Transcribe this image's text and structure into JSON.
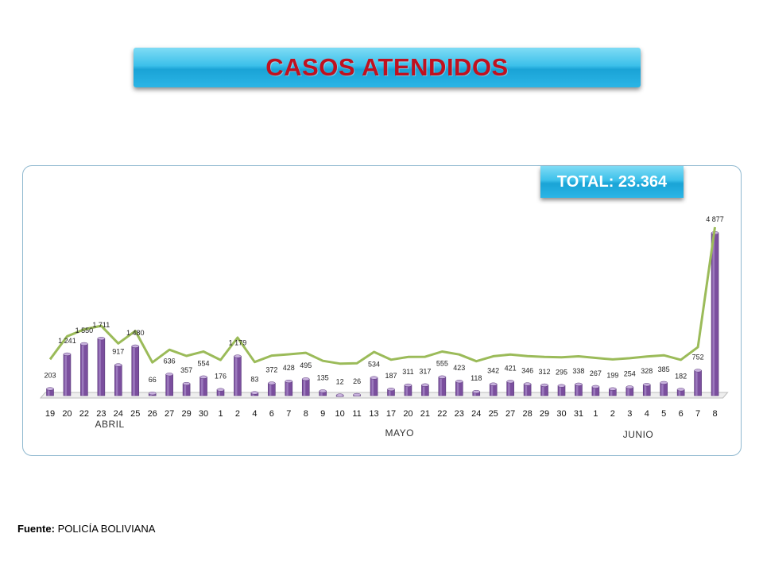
{
  "title": "CASOS ATENDIDOS",
  "total_label": "TOTAL: 23.364",
  "source": {
    "label": "Fuente:",
    "text": "POLICÍA BOLIVIANA"
  },
  "colors": {
    "bar": "#7b4f9e",
    "bar_light": "#a585c4",
    "line": "#9bbb59",
    "title": "#c0111f",
    "banner": "#2bb5e6"
  },
  "chart_data": {
    "type": "bar",
    "categories": [
      "19",
      "20",
      "22",
      "23",
      "24",
      "25",
      "26",
      "27",
      "29",
      "30",
      "1",
      "2",
      "4",
      "6",
      "7",
      "8",
      "9",
      "10",
      "11",
      "13",
      "17",
      "20",
      "21",
      "22",
      "23",
      "24",
      "25",
      "27",
      "28",
      "29",
      "30",
      "31",
      "1",
      "2",
      "3",
      "4",
      "5",
      "6",
      "7",
      "8"
    ],
    "value_labels": [
      "203",
      "1 241",
      "1 550",
      "1 711",
      "917",
      "1 480",
      "66",
      "636",
      "357",
      "554",
      "176",
      "1 179",
      "83",
      "372",
      "428",
      "495",
      "135",
      "12",
      "26",
      "534",
      "187",
      "311",
      "317",
      "555",
      "423",
      "118",
      "342",
      "421",
      "346",
      "312",
      "295",
      "338",
      "267",
      "199",
      "254",
      "328",
      "385",
      "182",
      "752",
      "4 877"
    ],
    "series": [
      {
        "values": [
          203,
          1241,
          1550,
          1711,
          917,
          1480,
          66,
          636,
          357,
          554,
          176,
          1179,
          83,
          372,
          428,
          495,
          135,
          12,
          26,
          534,
          187,
          311,
          317,
          555,
          423,
          118,
          342,
          421,
          346,
          312,
          295,
          338,
          267,
          199,
          254,
          328,
          385,
          182,
          752,
          4877
        ]
      }
    ],
    "month_labels": [
      {
        "label": "ABRIL",
        "start": 0
      },
      {
        "label": "MAYO",
        "start": 10
      },
      {
        "label": "JUNIO",
        "start": 32
      }
    ],
    "ylim": [
      0,
      5000
    ],
    "grid": false,
    "legend": false
  }
}
